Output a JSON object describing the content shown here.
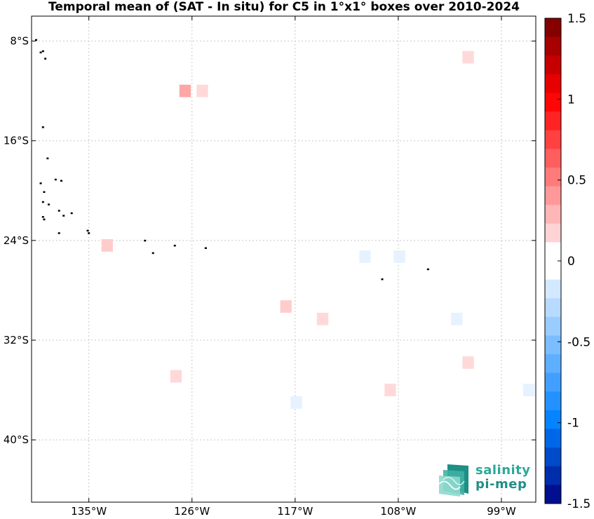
{
  "title": "Temporal mean of (SAT - In situ) for C5 in 1°x1° boxes over 2010-2024",
  "map": {
    "lon_range": [
      -140,
      -96
    ],
    "lat_range": [
      -45,
      -6
    ],
    "lon_ticks": [
      {
        "value": -135,
        "label": "135°W"
      },
      {
        "value": -126,
        "label": "126°W"
      },
      {
        "value": -117,
        "label": "117°W"
      },
      {
        "value": -108,
        "label": "108°W"
      },
      {
        "value": -99,
        "label": "99°W"
      }
    ],
    "lat_ticks": [
      {
        "value": -8,
        "label": "8°S"
      },
      {
        "value": -16,
        "label": "16°S"
      },
      {
        "value": -24,
        "label": "24°S"
      },
      {
        "value": -32,
        "label": "32°S"
      },
      {
        "value": -40,
        "label": "40°S"
      }
    ],
    "grid": true,
    "cells": [
      {
        "lon": -101.9,
        "lat": -9.3,
        "value": 0.15
      },
      {
        "lon": -126.6,
        "lat": -12.0,
        "value": 0.35
      },
      {
        "lon": -125.1,
        "lat": -12.0,
        "value": 0.15
      },
      {
        "lon": -133.4,
        "lat": -24.4,
        "value": 0.2
      },
      {
        "lon": -110.9,
        "lat": -25.3,
        "value": -0.1
      },
      {
        "lon": -107.9,
        "lat": -25.3,
        "value": -0.1
      },
      {
        "lon": -117.8,
        "lat": -29.3,
        "value": 0.2
      },
      {
        "lon": -114.6,
        "lat": -30.3,
        "value": 0.15
      },
      {
        "lon": -102.9,
        "lat": -30.3,
        "value": -0.1
      },
      {
        "lon": -101.9,
        "lat": -33.8,
        "value": 0.15
      },
      {
        "lon": -127.4,
        "lat": -34.9,
        "value": 0.15
      },
      {
        "lon": -108.7,
        "lat": -36.0,
        "value": 0.15
      },
      {
        "lon": -116.9,
        "lat": -37.0,
        "value": -0.1
      },
      {
        "lon": -96.6,
        "lat": -36.0,
        "value": -0.1
      }
    ],
    "islands": [
      [
        -139.6,
        -7.9
      ],
      [
        -139.0,
        -8.8
      ],
      [
        -139.2,
        -8.9
      ],
      [
        -138.8,
        -9.4
      ],
      [
        -139.0,
        -14.9
      ],
      [
        -138.6,
        -17.4
      ],
      [
        -139.2,
        -19.4
      ],
      [
        -138.9,
        -20.1
      ],
      [
        -137.9,
        -19.1
      ],
      [
        -137.4,
        -19.2
      ],
      [
        -139.0,
        -20.9
      ],
      [
        -138.5,
        -21.1
      ],
      [
        -137.6,
        -21.6
      ],
      [
        -137.2,
        -22.0
      ],
      [
        -136.5,
        -21.8
      ],
      [
        -139.0,
        -22.1
      ],
      [
        -138.9,
        -22.3
      ],
      [
        -137.6,
        -23.4
      ],
      [
        -135.1,
        -23.2
      ],
      [
        -135.0,
        -23.4
      ],
      [
        -130.1,
        -24.0
      ],
      [
        -127.5,
        -24.4
      ],
      [
        -129.4,
        -25.0
      ],
      [
        -124.8,
        -24.6
      ],
      [
        -109.4,
        -27.1
      ],
      [
        -105.4,
        -26.3
      ]
    ]
  },
  "colorbar": {
    "vmin": -1.5,
    "vmax": 1.5,
    "levels": 26,
    "ticks": [
      {
        "value": 1.5,
        "label": "1.5"
      },
      {
        "value": 1,
        "label": "1"
      },
      {
        "value": 0.5,
        "label": "0.5"
      },
      {
        "value": 0,
        "label": "0"
      },
      {
        "value": -0.5,
        "label": "-0.5"
      },
      {
        "value": -1,
        "label": "-1"
      },
      {
        "value": -1.5,
        "label": "-1.5"
      }
    ],
    "colormap": "blue-white-red"
  },
  "logo": {
    "line1": "salinity",
    "line2": "pi-mep"
  }
}
